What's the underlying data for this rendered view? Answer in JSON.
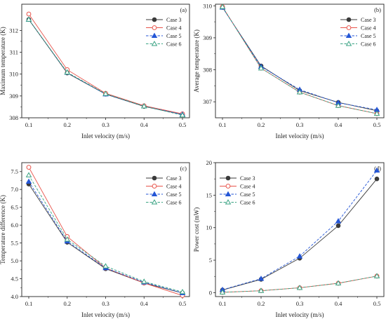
{
  "chart_data": [
    {
      "type": "line",
      "panel_label": "(a)",
      "xlabel": "Inlet velocity (m/s)",
      "ylabel": "Maximum temperature (K)",
      "x": [
        0.1,
        0.2,
        0.3,
        0.4,
        0.5
      ],
      "xticks": [
        "0.1",
        "0.2",
        "0.3",
        "0.4",
        "0.5"
      ],
      "ylim": [
        308,
        313.2
      ],
      "yticks": [
        308,
        309,
        310,
        311,
        312
      ],
      "legend_position": "top-right",
      "series": [
        {
          "name": "Case 3",
          "color": "#3a3a3a",
          "marker": "filled-circle",
          "dash": "solid",
          "values": [
            312.5,
            310.05,
            309.08,
            308.52,
            308.15
          ]
        },
        {
          "name": "Case 4",
          "color": "#e8534a",
          "marker": "open-circle",
          "dash": "solid",
          "values": [
            312.75,
            310.2,
            309.12,
            308.55,
            308.18
          ]
        },
        {
          "name": "Case 5",
          "color": "#2456d6",
          "marker": "filled-triangle",
          "dash": "dashed",
          "values": [
            312.5,
            310.07,
            309.08,
            308.53,
            308.15
          ]
        },
        {
          "name": "Case 6",
          "color": "#3aa383",
          "marker": "open-triangle",
          "dash": "dashed",
          "values": [
            312.5,
            310.08,
            309.1,
            308.53,
            308.12
          ]
        }
      ]
    },
    {
      "type": "line",
      "panel_label": "(b)",
      "xlabel": "Inlet velocity (m/s)",
      "ylabel": "Average temperature (K)",
      "x": [
        0.1,
        0.2,
        0.3,
        0.4,
        0.5
      ],
      "xticks": [
        "0.1",
        "0.2",
        "0.3",
        "0.4",
        "0.5"
      ],
      "ylim": [
        306.5,
        310.05
      ],
      "yticks": [
        307,
        308,
        309,
        310
      ],
      "legend_position": "top-right",
      "series": [
        {
          "name": "Case 3",
          "color": "#3a3a3a",
          "marker": "filled-circle",
          "dash": "solid",
          "values": [
            309.95,
            308.12,
            307.35,
            306.98,
            306.72
          ]
        },
        {
          "name": "Case 4",
          "color": "#e8534a",
          "marker": "open-circle",
          "dash": "solid",
          "values": [
            309.97,
            308.05,
            307.3,
            306.88,
            306.63
          ]
        },
        {
          "name": "Case 5",
          "color": "#2456d6",
          "marker": "filled-triangle",
          "dash": "dashed",
          "values": [
            309.95,
            308.1,
            307.38,
            306.97,
            306.75
          ]
        },
        {
          "name": "Case 6",
          "color": "#3aa383",
          "marker": "open-triangle",
          "dash": "dashed",
          "values": [
            309.97,
            308.05,
            307.3,
            306.88,
            306.63
          ]
        }
      ]
    },
    {
      "type": "line",
      "panel_label": "(c)",
      "xlabel": "Inlet velocity (m/s)",
      "ylabel": "Temperature difference (K)",
      "x": [
        0.1,
        0.2,
        0.3,
        0.4,
        0.5
      ],
      "xticks": [
        "0.1",
        "0.2",
        "0.3",
        "0.4",
        "0.5"
      ],
      "ylim": [
        4.0,
        7.75
      ],
      "yticks": [
        "4.0",
        "4.5",
        "5.0",
        "5.5",
        "6.0",
        "6.5",
        "7.0",
        "7.5"
      ],
      "legend_position": "top-right",
      "series": [
        {
          "name": "Case 3",
          "color": "#3a3a3a",
          "marker": "filled-circle",
          "dash": "solid",
          "values": [
            7.15,
            5.52,
            4.78,
            4.38,
            4.1
          ]
        },
        {
          "name": "Case 4",
          "color": "#e8534a",
          "marker": "open-circle",
          "dash": "solid",
          "values": [
            7.62,
            5.68,
            4.8,
            4.38,
            4.03
          ]
        },
        {
          "name": "Case 5",
          "color": "#2456d6",
          "marker": "filled-triangle",
          "dash": "dashed",
          "values": [
            7.22,
            5.55,
            4.8,
            4.4,
            4.1
          ]
        },
        {
          "name": "Case 6",
          "color": "#3aa383",
          "marker": "open-triangle",
          "dash": "dashed",
          "values": [
            7.4,
            5.6,
            4.85,
            4.42,
            4.13
          ]
        }
      ]
    },
    {
      "type": "line",
      "panel_label": "(d)",
      "xlabel": "Inlet velocity (m/s)",
      "ylabel": "Power cost (mW)",
      "x": [
        0.1,
        0.2,
        0.3,
        0.4,
        0.5
      ],
      "xticks": [
        "0.1",
        "0.2",
        "0.3",
        "0.4",
        "0.5"
      ],
      "ylim": [
        -0.6,
        20
      ],
      "yticks": [
        0,
        5,
        10,
        15,
        20
      ],
      "legend_position": "top-left",
      "series": [
        {
          "name": "Case 3",
          "color": "#3a3a3a",
          "marker": "filled-circle",
          "dash": "solid",
          "values": [
            0.4,
            2.05,
            5.3,
            10.3,
            17.5
          ]
        },
        {
          "name": "Case 4",
          "color": "#e8534a",
          "marker": "open-circle",
          "dash": "solid",
          "values": [
            0.05,
            0.3,
            0.75,
            1.45,
            2.55
          ]
        },
        {
          "name": "Case 5",
          "color": "#2456d6",
          "marker": "filled-triangle",
          "dash": "dashed",
          "values": [
            0.45,
            2.15,
            5.6,
            11.0,
            18.8
          ]
        },
        {
          "name": "Case 6",
          "color": "#3aa383",
          "marker": "open-triangle",
          "dash": "dashed",
          "values": [
            0.05,
            0.3,
            0.75,
            1.45,
            2.55
          ]
        }
      ]
    }
  ]
}
